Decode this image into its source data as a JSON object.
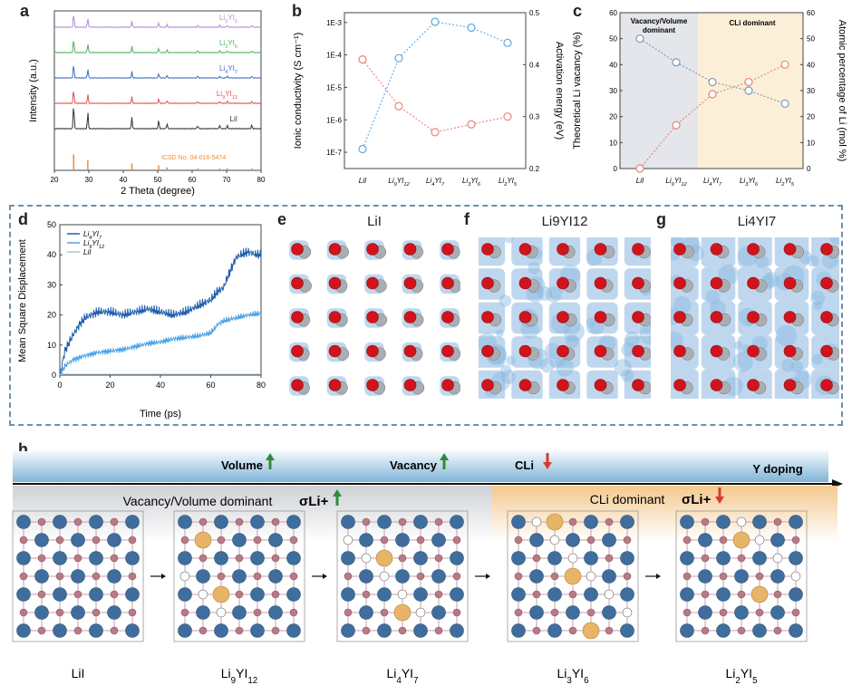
{
  "panels": {
    "a": "a",
    "b": "b",
    "c": "c",
    "d": "d",
    "e": "e",
    "f": "f",
    "g": "g",
    "h": "h"
  },
  "panel_a": {
    "xlabel": "2 Theta (degree)",
    "ylabel": "Intensity (a.u.)",
    "xticks": [
      "20",
      "30",
      "40",
      "50",
      "60",
      "70",
      "80"
    ],
    "traces": [
      {
        "label": "Li2YI5",
        "color": "#b48ad6"
      },
      {
        "label": "Li3YI6",
        "color": "#4fb35b"
      },
      {
        "label": "Li4YI7",
        "color": "#3f6fc4"
      },
      {
        "label": "Li9YI12",
        "color": "#e0504a"
      },
      {
        "label": "LiI",
        "color": "#333333"
      }
    ],
    "reference": "ICSD No. 04-016-5474",
    "reference_color": "#f08a2c"
  },
  "chart_data": [
    {
      "type": "line",
      "panel": "b",
      "categories": [
        "LiI",
        "Li9YI12",
        "Li4YI7",
        "Li3YI6",
        "Li2YI5"
      ],
      "ylabel": "Ionic conductivity (S cm⁻¹)",
      "y2label": "Activation energy (eV)",
      "yticks": [
        "1E-7",
        "1E-6",
        "1E-5",
        "1E-4",
        "1E-3"
      ],
      "y2ticks": [
        "0.2",
        "0.3",
        "0.4",
        "0.5"
      ],
      "series": [
        {
          "color": "#5ea8e0",
          "axis": "log_conductivity",
          "values": [
            -6.9,
            -4.1,
            -2.98,
            -3.16,
            -3.63
          ]
        },
        {
          "color": "#e8827c",
          "axis": "activation_energy_eV",
          "values": [
            0.41,
            0.32,
            0.27,
            0.285,
            0.3
          ]
        }
      ]
    },
    {
      "type": "line",
      "panel": "c",
      "categories": [
        "LiI",
        "Li9YI12",
        "Li4YI7",
        "Li3YI6",
        "Li2YI5"
      ],
      "ylabel": "Theoretical Li vacancy (%)",
      "y2label": "Atomic percentage of Li (mol %)",
      "yticks": [
        "0",
        "10",
        "20",
        "30",
        "40",
        "50",
        "60"
      ],
      "y2ticks": [
        "0",
        "10",
        "20",
        "30",
        "40",
        "50",
        "60"
      ],
      "regions": [
        "Vacancy/Volume dominant",
        "CLi dominant"
      ],
      "series": [
        {
          "color": "#e8827c",
          "axis": "vacancy_percent",
          "values": [
            0,
            16.7,
            28.6,
            33.3,
            40
          ]
        },
        {
          "color": "#7a9ab8",
          "axis": "li_mol_percent",
          "values": [
            50,
            40.9,
            33.3,
            30,
            25
          ]
        }
      ]
    },
    {
      "type": "line",
      "panel": "d",
      "xlabel": "Time (ps)",
      "ylabel": "Mean Square Displacement",
      "xticks": [
        "0",
        "20",
        "40",
        "60",
        "80"
      ],
      "yticks": [
        "0",
        "10",
        "20",
        "30",
        "40",
        "50"
      ],
      "xlim": [
        0,
        80
      ],
      "ylim": [
        0,
        50
      ],
      "series": [
        {
          "name": "Li4YI7",
          "color": "#1f5fae",
          "x": [
            0,
            2,
            5,
            8,
            10,
            15,
            20,
            25,
            30,
            35,
            40,
            45,
            50,
            55,
            60,
            63,
            65,
            68,
            70,
            72,
            75,
            78,
            80
          ],
          "values": [
            0,
            8,
            13,
            17,
            19,
            21,
            21,
            20,
            21,
            22,
            21,
            20,
            21,
            23,
            25,
            28,
            29,
            35,
            39,
            40,
            41,
            40,
            40
          ]
        },
        {
          "name": "Li9YI12",
          "color": "#4aa3e8",
          "x": [
            0,
            2,
            5,
            10,
            15,
            20,
            25,
            30,
            35,
            40,
            45,
            50,
            55,
            60,
            63,
            65,
            70,
            75,
            80
          ],
          "values": [
            0,
            3,
            5,
            6.5,
            7.5,
            8,
            8.5,
            9.5,
            10.5,
            11,
            12,
            12.5,
            13,
            14,
            17,
            18,
            19,
            20,
            20.5
          ]
        },
        {
          "name": "LiI",
          "color": "#a8c4d8",
          "x": [
            0,
            80
          ],
          "values": [
            0.3,
            0.3
          ]
        }
      ]
    }
  ],
  "panel_e": {
    "title": "LiI"
  },
  "panel_f": {
    "title": "Li9YI12"
  },
  "panel_g": {
    "title": "Li4YI7"
  },
  "panel_h": {
    "arrow_label": "Y doping",
    "volume": "Volume",
    "vacancy": "Vacancy",
    "cli": "CLi",
    "left_region": "Vacancy/Volume dominant",
    "right_region": "CLi dominant",
    "sigma": "σLi+",
    "up_color": "#2e8b3a",
    "down_color": "#d83a2e",
    "structures": [
      "LiI",
      "Li9YI12",
      "Li4YI7",
      "Li3YI6",
      "Li2YI5"
    ]
  }
}
